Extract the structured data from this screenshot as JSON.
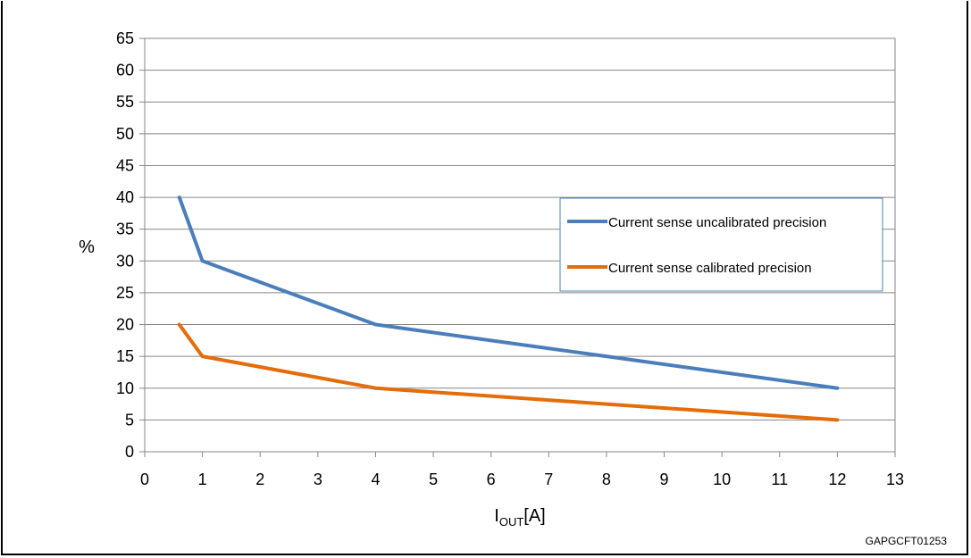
{
  "chart_data": {
    "type": "line",
    "title": "",
    "xlabel": {
      "main": "I",
      "sub": "OUT",
      "unit": "[A]"
    },
    "ylabel": "%",
    "xlim": [
      0,
      13
    ],
    "ylim": [
      0,
      65
    ],
    "xticks": [
      "0",
      "1",
      "2",
      "3",
      "4",
      "5",
      "6",
      "7",
      "8",
      "9",
      "10",
      "11",
      "12",
      "13"
    ],
    "yticks": [
      "0",
      "5",
      "10",
      "15",
      "20",
      "25",
      "30",
      "35",
      "40",
      "45",
      "50",
      "55",
      "60",
      "65"
    ],
    "grid": true,
    "legend_position": "right",
    "series": [
      {
        "name": "Current sense uncalibrated precision",
        "color": "#4a7ebb",
        "x": [
          0.6,
          1,
          4,
          8,
          12
        ],
        "y": [
          40,
          30,
          20,
          15,
          10
        ]
      },
      {
        "name": "Current sense calibrated precision",
        "color": "#e46c0a",
        "x": [
          0.6,
          1,
          4,
          8,
          12
        ],
        "y": [
          20,
          15,
          10,
          7.5,
          5
        ]
      }
    ],
    "figure_code": "GAPGCFT01253"
  }
}
